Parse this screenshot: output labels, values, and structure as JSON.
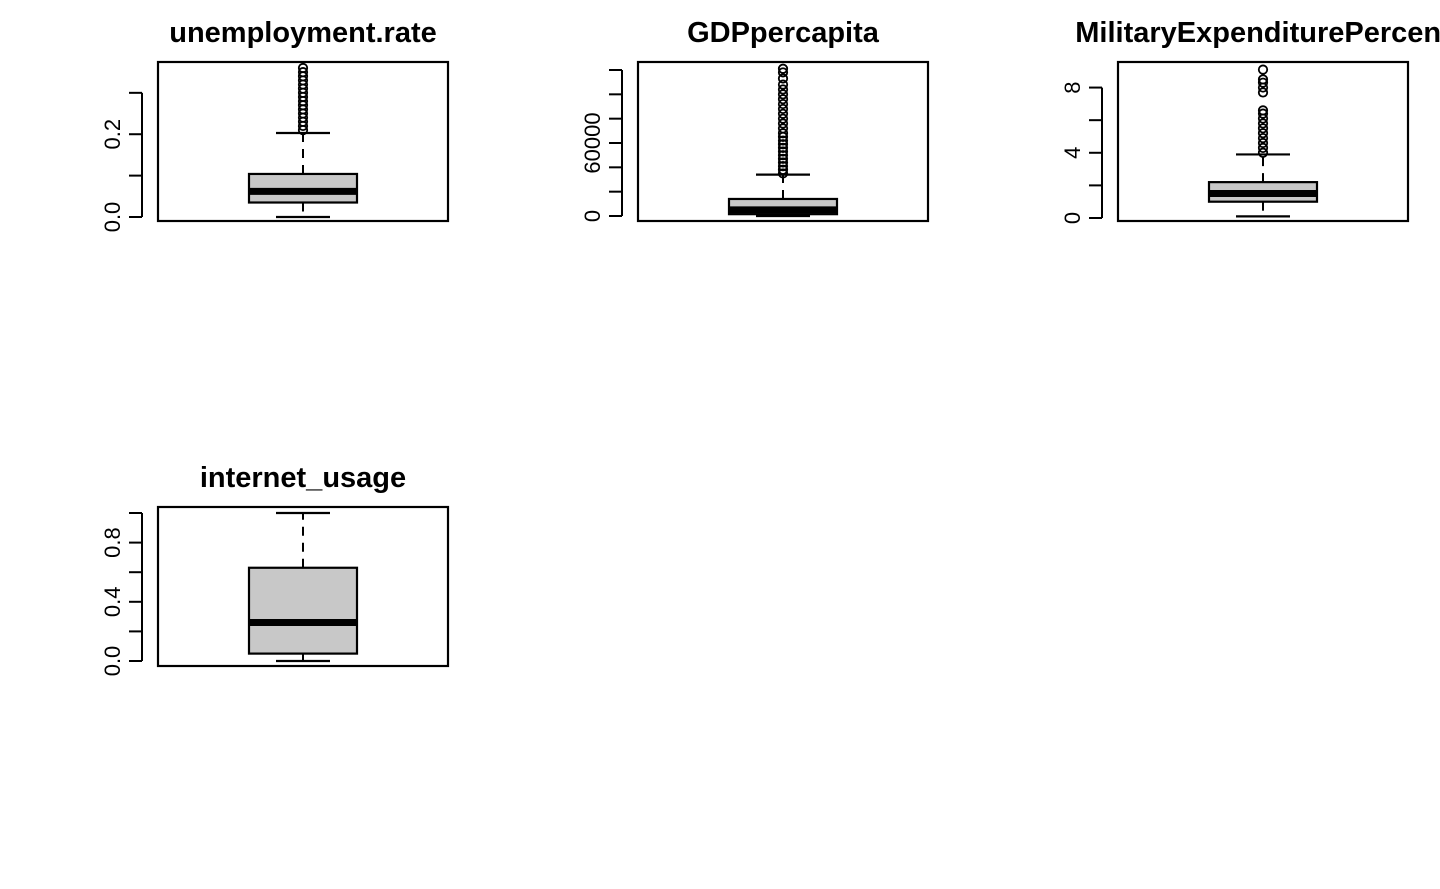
{
  "chart_data": [
    {
      "type": "box",
      "title": "unemployment.rate",
      "ylim": [
        0,
        0.36
      ],
      "yticks": [
        0,
        0.1,
        0.2,
        0.3
      ],
      "ytick_labels": [
        "0.0",
        "",
        "0.2",
        ""
      ],
      "box": {
        "lower_whisker": 0.0,
        "q1": 0.035,
        "median": 0.062,
        "q3": 0.104,
        "upper_whisker": 0.203
      },
      "outliers": [
        0.21,
        0.22,
        0.23,
        0.24,
        0.25,
        0.26,
        0.27,
        0.28,
        0.29,
        0.3,
        0.31,
        0.32,
        0.33,
        0.34,
        0.35,
        0.36
      ],
      "fill_color": "#c8c8c8"
    },
    {
      "type": "box",
      "title": "GDPpercapita",
      "ylim": [
        0,
        120000
      ],
      "yticks": [
        0,
        20000,
        40000,
        60000,
        80000,
        100000,
        120000
      ],
      "ytick_labels": [
        "0",
        "",
        "",
        "60000",
        "",
        "",
        ""
      ],
      "box": {
        "lower_whisker": 0,
        "q1": 1500,
        "median": 5000,
        "q3": 14000,
        "upper_whisker": 34000
      },
      "outliers": [
        35000,
        38000,
        41000,
        44000,
        47000,
        50000,
        53000,
        56000,
        59000,
        62000,
        65000,
        68000,
        72000,
        76000,
        80000,
        84000,
        88000,
        92000,
        96000,
        100000,
        104000,
        108000,
        113000,
        118000,
        121000
      ],
      "fill_color": "#c8c8c8"
    },
    {
      "type": "box",
      "title": "MilitaryExpenditurePercent",
      "ylim": [
        0,
        9.2
      ],
      "yticks": [
        0,
        2,
        4,
        6,
        8
      ],
      "ytick_labels": [
        "0",
        "",
        "4",
        "",
        "8"
      ],
      "box": {
        "lower_whisker": 0.1,
        "q1": 1.0,
        "median": 1.5,
        "q3": 2.2,
        "upper_whisker": 3.9
      },
      "outliers": [
        4.0,
        4.3,
        4.6,
        4.9,
        5.2,
        5.5,
        5.8,
        6.1,
        6.4,
        6.6,
        7.7,
        8.0,
        8.3,
        8.5,
        9.1
      ],
      "fill_color": "#c8c8c8"
    },
    {
      "type": "box",
      "title": "internet_usage",
      "ylim": [
        0,
        1.0
      ],
      "yticks": [
        0,
        0.2,
        0.4,
        0.6,
        0.8,
        1.0
      ],
      "ytick_labels": [
        "0.0",
        "",
        "0.4",
        "",
        "0.8",
        ""
      ],
      "box": {
        "lower_whisker": 0.0,
        "q1": 0.05,
        "median": 0.26,
        "q3": 0.63,
        "upper_whisker": 1.0
      },
      "outliers": [],
      "fill_color": "#c8c8c8"
    }
  ]
}
